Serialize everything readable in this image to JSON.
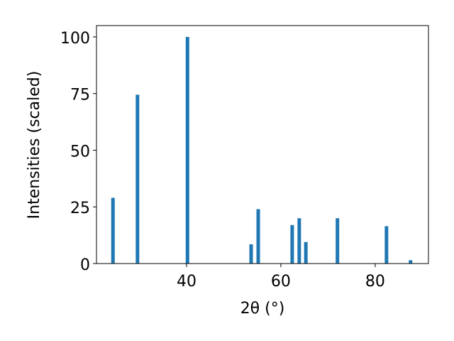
{
  "chart_data": {
    "type": "bar",
    "xlabel": "2θ (°)",
    "ylabel": "Intensities (scaled)",
    "x": [
      24.4,
      29.6,
      40.2,
      53.7,
      55.2,
      62.4,
      63.9,
      65.3,
      72.0,
      82.4,
      87.5
    ],
    "values": [
      29,
      74.5,
      100,
      8.5,
      24,
      17,
      20,
      9.5,
      20,
      16.5,
      1.5
    ],
    "color": "#1f77b4",
    "xlim": [
      20.9,
      91.3
    ],
    "xticks": [
      40,
      60,
      80
    ],
    "ylim": [
      0,
      105
    ],
    "yticks": [
      0,
      25,
      50,
      75,
      100
    ],
    "grid": false
  }
}
